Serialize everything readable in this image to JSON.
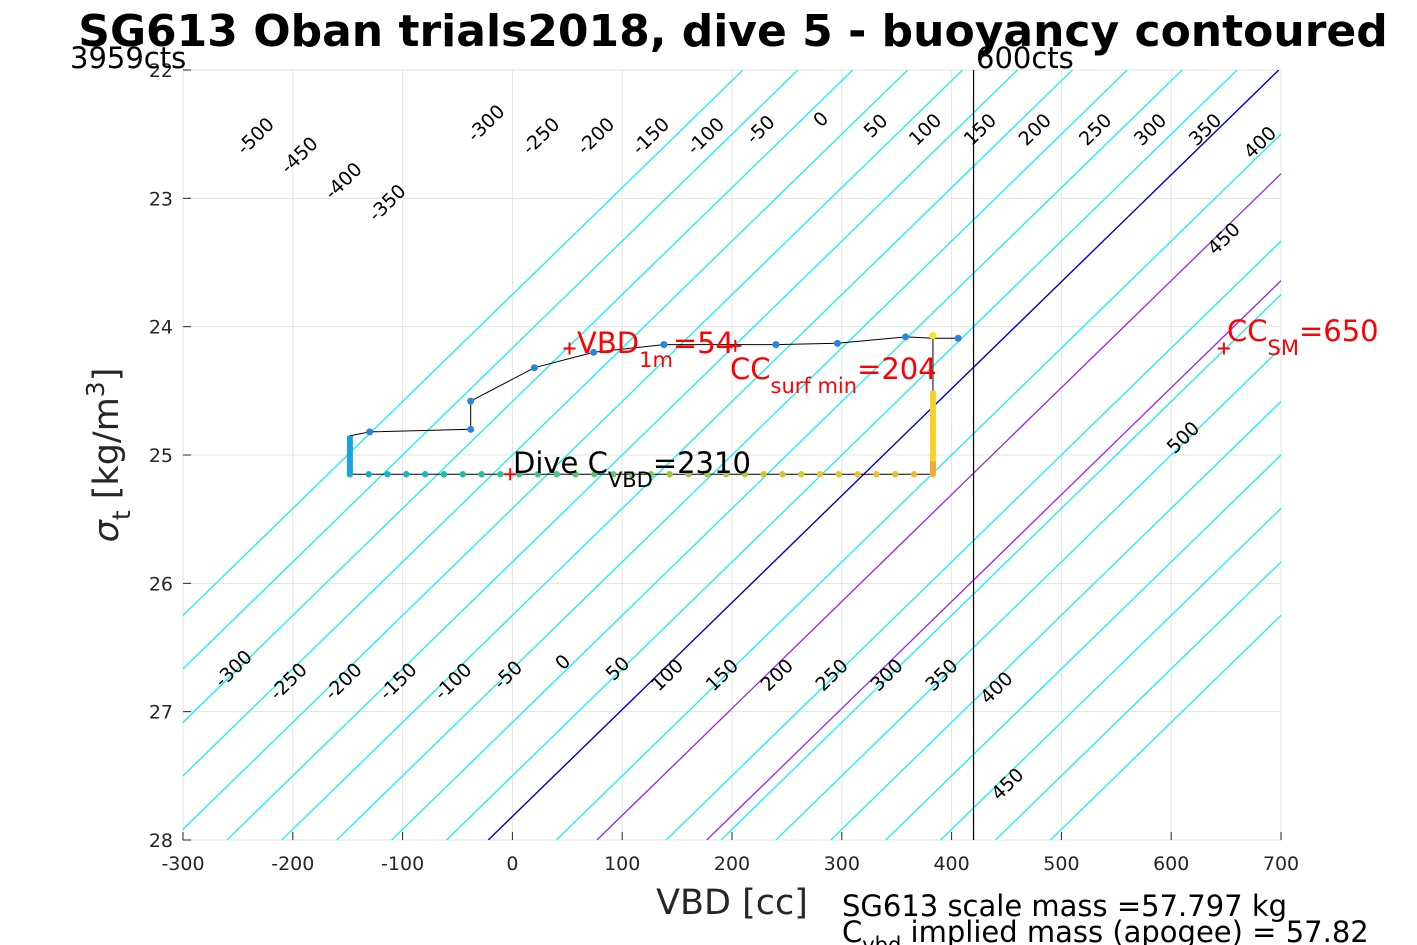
{
  "chart_data": {
    "type": "scatter",
    "title": "SG613 Oban trials2018, dive 5 - buoyancy contoured",
    "xlabel": "VBD [cc]",
    "ylabel": "σ_t [kg/m^3]",
    "xlim": [
      -300,
      700
    ],
    "ylim": [
      22,
      28
    ],
    "y_reversed": true,
    "grid": true,
    "xticks": [
      "-300",
      "-200",
      "-100",
      "0",
      "100",
      "200",
      "300",
      "400",
      "500",
      "600",
      "700"
    ],
    "xtick_values": [
      -300,
      -200,
      -100,
      0,
      100,
      200,
      300,
      400,
      500,
      600,
      700
    ],
    "yticks": [
      "22",
      "23",
      "24",
      "25",
      "26",
      "27",
      "28"
    ],
    "ytick_values": [
      22,
      23,
      24,
      25,
      26,
      27,
      28
    ],
    "top_left_label": "3959cts",
    "top_right_label": "600cts",
    "vbd_limit_line_x": 420,
    "contour_slope_cc_per_sigma": 120,
    "contours": {
      "cyan_values": [
        -500,
        -450,
        -400,
        -350,
        -300,
        -250,
        -200,
        -150,
        -100,
        -50,
        50,
        150,
        200,
        250,
        300,
        350,
        400,
        450,
        500
      ],
      "blue_value": 0,
      "magenta_values": [
        100,
        200
      ],
      "x_at_sigma28": [
        -510,
        -460,
        -410,
        -360,
        -310,
        -260,
        -210,
        -160,
        -110,
        -60,
        40,
        140,
        190,
        240,
        290,
        340,
        390,
        440,
        490
      ],
      "blue_x_at_sigma28": -22,
      "magenta_x_at_sigma28": [
        77,
        177
      ]
    },
    "contour_labels_top": [
      {
        "text": "-500",
        "vbd": -230,
        "sigma": 22.55
      },
      {
        "text": "-450",
        "vbd": -190,
        "sigma": 22.7
      },
      {
        "text": "-400",
        "vbd": -150,
        "sigma": 22.9
      },
      {
        "text": "-350",
        "vbd": -110,
        "sigma": 23.07
      },
      {
        "text": "-300",
        "vbd": -20,
        "sigma": 22.45
      },
      {
        "text": "-250",
        "vbd": 30,
        "sigma": 22.55
      },
      {
        "text": "-200",
        "vbd": 80,
        "sigma": 22.55
      },
      {
        "text": "-150",
        "vbd": 130,
        "sigma": 22.55
      },
      {
        "text": "-100",
        "vbd": 180,
        "sigma": 22.55
      },
      {
        "text": "-50",
        "vbd": 230,
        "sigma": 22.5
      },
      {
        "text": "0",
        "vbd": 285,
        "sigma": 22.42
      },
      {
        "text": "50",
        "vbd": 335,
        "sigma": 22.47
      },
      {
        "text": "100",
        "vbd": 380,
        "sigma": 22.5
      },
      {
        "text": "150",
        "vbd": 430,
        "sigma": 22.5
      },
      {
        "text": "200",
        "vbd": 480,
        "sigma": 22.5
      },
      {
        "text": "250",
        "vbd": 535,
        "sigma": 22.5
      },
      {
        "text": "300",
        "vbd": 585,
        "sigma": 22.5
      },
      {
        "text": "350",
        "vbd": 635,
        "sigma": 22.5
      },
      {
        "text": "400",
        "vbd": 685,
        "sigma": 22.6
      },
      {
        "text": "450",
        "vbd": 652,
        "sigma": 23.35
      },
      {
        "text": "500",
        "vbd": 615,
        "sigma": 24.9
      }
    ],
    "contour_labels_bottom": [
      {
        "text": "-300",
        "vbd": -250,
        "sigma": 26.7
      },
      {
        "text": "-250",
        "vbd": -200,
        "sigma": 26.8
      },
      {
        "text": "-200",
        "vbd": -150,
        "sigma": 26.8
      },
      {
        "text": "-150",
        "vbd": -100,
        "sigma": 26.8
      },
      {
        "text": "-100",
        "vbd": -50,
        "sigma": 26.8
      },
      {
        "text": "-50",
        "vbd": 0,
        "sigma": 26.75
      },
      {
        "text": "0",
        "vbd": 50,
        "sigma": 26.65
      },
      {
        "text": "50",
        "vbd": 100,
        "sigma": 26.7
      },
      {
        "text": "100",
        "vbd": 145,
        "sigma": 26.75
      },
      {
        "text": "150",
        "vbd": 195,
        "sigma": 26.75
      },
      {
        "text": "200",
        "vbd": 245,
        "sigma": 26.75
      },
      {
        "text": "250",
        "vbd": 295,
        "sigma": 26.75
      },
      {
        "text": "300",
        "vbd": 345,
        "sigma": 26.75
      },
      {
        "text": "350",
        "vbd": 395,
        "sigma": 26.75
      },
      {
        "text": "400",
        "vbd": 445,
        "sigma": 26.85
      },
      {
        "text": "450",
        "vbd": 455,
        "sigma": 27.6
      }
    ],
    "dive_path": [
      {
        "vbd": -148,
        "sigma": 25.15
      },
      {
        "vbd": -148,
        "sigma": 24.85
      },
      {
        "vbd": -130,
        "sigma": 24.82
      },
      {
        "vbd": -38,
        "sigma": 24.8
      },
      {
        "vbd": -38,
        "sigma": 24.58
      },
      {
        "vbd": 20,
        "sigma": 24.32
      },
      {
        "vbd": 74,
        "sigma": 24.2
      },
      {
        "vbd": 138,
        "sigma": 24.14
      },
      {
        "vbd": 240,
        "sigma": 24.14
      },
      {
        "vbd": 296,
        "sigma": 24.13
      },
      {
        "vbd": 358,
        "sigma": 24.08
      },
      {
        "vbd": 384,
        "sigma": 24.09
      },
      {
        "vbd": 406,
        "sigma": 24.09
      }
    ],
    "blue_dots": [
      {
        "vbd": -130,
        "sigma": 24.82
      },
      {
        "vbd": -38,
        "sigma": 24.8
      },
      {
        "vbd": -38,
        "sigma": 24.58
      },
      {
        "vbd": 20,
        "sigma": 24.32
      },
      {
        "vbd": 74,
        "sigma": 24.2
      },
      {
        "vbd": 138,
        "sigma": 24.14
      },
      {
        "vbd": 240,
        "sigma": 24.14
      },
      {
        "vbd": 296,
        "sigma": 24.13
      },
      {
        "vbd": 358,
        "sigma": 24.08
      },
      {
        "vbd": 406,
        "sigma": 24.09
      }
    ],
    "bottom_segment": {
      "vbd_start": -148,
      "vbd_end": 383,
      "sigma": 25.15,
      "point_count": 32
    },
    "left_vertical": {
      "vbd": -148,
      "sigma_top": 24.85,
      "sigma_bottom": 25.15
    },
    "right_vertical": {
      "vbd": 383,
      "sigma_top": 24.07,
      "sigma_bottom": 25.15
    },
    "markers": [
      {
        "label": "VBD_1m",
        "vbd": 52,
        "sigma": 24.17
      },
      {
        "label": "CC_surf_min",
        "vbd": 203,
        "sigma": 24.15
      },
      {
        "label": "Dive_C_VBD",
        "vbd": -2,
        "sigma": 25.15
      },
      {
        "label": "CC_SM",
        "vbd": 648,
        "sigma": 24.17
      }
    ],
    "annotations": {
      "vbd_1m": {
        "main": "VBD",
        "sub": "1m",
        "value": "=54"
      },
      "cc_surf_min": {
        "main": "CC",
        "sub": "surf min",
        "value": "=204"
      },
      "dive_cvbd": {
        "main": "Dive C",
        "sub": "VBD",
        "value": "=2310"
      },
      "cc_sm": {
        "main": "CC",
        "sub": "SM",
        "value": "=650"
      }
    },
    "footer": {
      "scale_mass": "SG613 scale mass =57.797 kg",
      "implied_main": "C",
      "implied_sub": "vbd",
      "implied_rest": " implied mass (apogee) = 57.82"
    },
    "colors": {
      "cyan": "#00f0f0",
      "blue": "#0000cc",
      "magenta": "#a020f0",
      "red": "#ff0000",
      "dot_blue": "#2a85e0"
    }
  }
}
